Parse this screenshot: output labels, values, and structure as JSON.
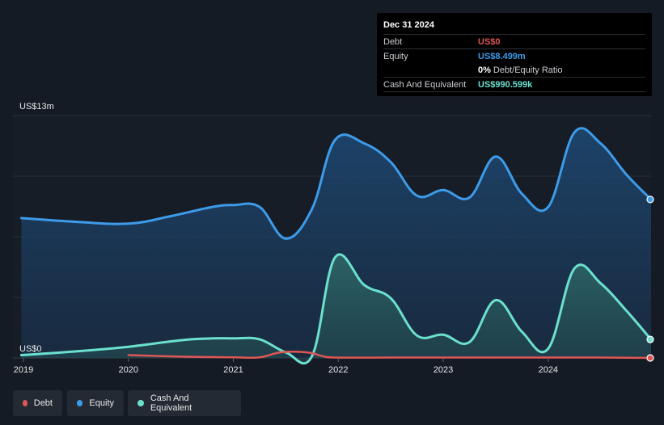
{
  "tooltip": {
    "date": "Dec 31 2024",
    "rows": [
      {
        "label": "Debt",
        "value": "US$0",
        "color": "#e05656"
      },
      {
        "label": "Equity",
        "value": "US$8.499m",
        "color": "#3d9be9"
      },
      {
        "label": "",
        "value": "0%",
        "suffix": "Debt/Equity Ratio",
        "color": "#ffffff"
      },
      {
        "label": "Cash And Equivalent",
        "value": "US$990.599k",
        "color": "#6ce0cf"
      }
    ]
  },
  "legend": [
    {
      "label": "Debt",
      "color": "#e05656"
    },
    {
      "label": "Equity",
      "color": "#3d9be9"
    },
    {
      "label": "Cash And Equivalent",
      "color": "#6ce0cf"
    }
  ],
  "chart_data": {
    "type": "area",
    "title": "",
    "xlabel": "",
    "ylabel": "",
    "unit": "US$m",
    "y_tick_labels": {
      "top": "US$13m",
      "bottom": "US$0"
    },
    "ylim": [
      0,
      13
    ],
    "xlim": [
      2018.9,
      2024.98
    ],
    "x_ticks": [
      2019,
      2020,
      2021,
      2022,
      2023,
      2024
    ],
    "x_tick_labels": [
      "2019",
      "2020",
      "2021",
      "2022",
      "2023",
      "2024"
    ],
    "series": [
      {
        "name": "Equity",
        "color": "#3d9be9",
        "points": [
          [
            2018.98,
            7.5
          ],
          [
            2019.5,
            7.3
          ],
          [
            2020.0,
            7.2
          ],
          [
            2020.4,
            7.6
          ],
          [
            2020.8,
            8.1
          ],
          [
            2021.0,
            8.2
          ],
          [
            2021.25,
            8.1
          ],
          [
            2021.5,
            6.4
          ],
          [
            2021.75,
            8.0
          ],
          [
            2021.97,
            11.7
          ],
          [
            2022.25,
            11.5
          ],
          [
            2022.5,
            10.5
          ],
          [
            2022.75,
            8.7
          ],
          [
            2023.0,
            9.0
          ],
          [
            2023.25,
            8.6
          ],
          [
            2023.5,
            10.8
          ],
          [
            2023.75,
            8.8
          ],
          [
            2024.0,
            8.1
          ],
          [
            2024.25,
            12.1
          ],
          [
            2024.5,
            11.5
          ],
          [
            2024.75,
            9.8
          ],
          [
            2024.98,
            8.499
          ]
        ]
      },
      {
        "name": "Cash And Equivalent",
        "color": "#6ce0cf",
        "points": [
          [
            2018.98,
            0.15
          ],
          [
            2019.5,
            0.35
          ],
          [
            2020.0,
            0.6
          ],
          [
            2020.5,
            0.95
          ],
          [
            2020.8,
            1.05
          ],
          [
            2021.0,
            1.05
          ],
          [
            2021.25,
            1.0
          ],
          [
            2021.5,
            0.3
          ],
          [
            2021.75,
            0.1
          ],
          [
            2021.97,
            5.4
          ],
          [
            2022.25,
            3.9
          ],
          [
            2022.5,
            3.2
          ],
          [
            2022.75,
            1.2
          ],
          [
            2023.0,
            1.25
          ],
          [
            2023.25,
            0.85
          ],
          [
            2023.5,
            3.1
          ],
          [
            2023.75,
            1.4
          ],
          [
            2024.0,
            0.5
          ],
          [
            2024.25,
            4.8
          ],
          [
            2024.5,
            4.0
          ],
          [
            2024.75,
            2.5
          ],
          [
            2024.98,
            0.99
          ]
        ]
      },
      {
        "name": "Debt",
        "color": "#e05656",
        "points": [
          [
            2020.0,
            0.15
          ],
          [
            2020.5,
            0.07
          ],
          [
            2021.0,
            0.03
          ],
          [
            2021.25,
            0.03
          ],
          [
            2021.45,
            0.3
          ],
          [
            2021.7,
            0.3
          ],
          [
            2021.85,
            0.1
          ],
          [
            2021.97,
            0.02
          ],
          [
            2022.5,
            0.02
          ],
          [
            2023.0,
            0.02
          ],
          [
            2023.5,
            0.02
          ],
          [
            2024.0,
            0.02
          ],
          [
            2024.5,
            0.02
          ],
          [
            2024.98,
            0.0
          ]
        ]
      }
    ]
  }
}
